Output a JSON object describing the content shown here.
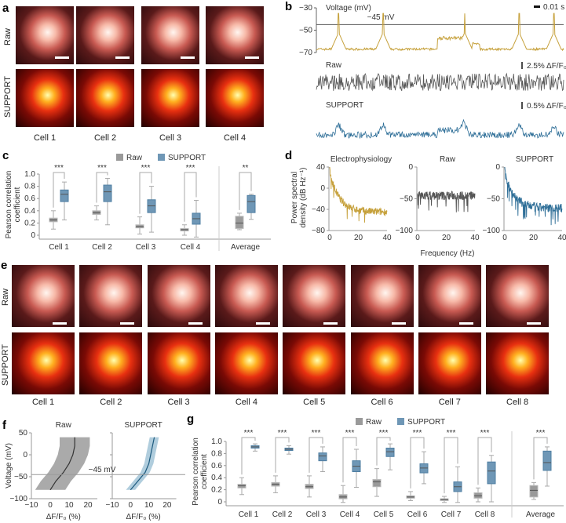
{
  "panels": {
    "a": "a",
    "b": "b",
    "c": "c",
    "d": "d",
    "e": "e",
    "f": "f",
    "g": "g"
  },
  "row_labels": {
    "raw": "Raw",
    "support": "SUPPORT"
  },
  "panel_a": {
    "cells": [
      "Cell 1",
      "Cell 2",
      "Cell 3",
      "Cell 4"
    ]
  },
  "panel_e": {
    "cells": [
      "Cell 1",
      "Cell 2",
      "Cell 3",
      "Cell 4",
      "Cell 5",
      "Cell 6",
      "Cell 7",
      "Cell 8"
    ]
  },
  "colors": {
    "ephys": "#c6a13c",
    "raw": "#555555",
    "support": "#2f6f98",
    "raw_box": "#9a9a9a",
    "support_box": "#6f97b6"
  },
  "chart_data": [
    {
      "id": "b",
      "type": "line",
      "voltage_label": "Voltage (mV)",
      "yticks": [
        -30,
        -50,
        -70
      ],
      "threshold_label": "−45 mV",
      "threshold": -45,
      "time_scale": "0.01 s",
      "raw_label": "Raw",
      "raw_scale": "2.5% ΔF/F₀",
      "support_label": "SUPPORT",
      "support_scale": "0.5% ΔF/F₀",
      "spike_times_frac": [
        0.09,
        0.27,
        0.6,
        0.82,
        0.96
      ],
      "baseline_mV": -67,
      "spike_peak_mV": -35
    },
    {
      "id": "c",
      "type": "box",
      "ylabel": "Pearson correlation coefficient",
      "ylim": [
        0,
        1
      ],
      "yticks": [
        "0",
        "0.2",
        "0.4",
        "0.6",
        "0.8",
        "1.0"
      ],
      "legend": [
        "Raw",
        "SUPPORT"
      ],
      "categories": [
        "Cell 1",
        "Cell 2",
        "Cell 3",
        "Cell 4",
        "Average"
      ],
      "significance": [
        "***",
        "***",
        "***",
        "***",
        "**"
      ],
      "raw": [
        [
          0.1,
          0.22,
          0.25,
          0.28,
          0.4
        ],
        [
          0.25,
          0.34,
          0.37,
          0.4,
          0.48
        ],
        [
          0.02,
          0.12,
          0.14,
          0.17,
          0.3
        ],
        [
          0.0,
          0.07,
          0.09,
          0.11,
          0.17
        ],
        [
          0.09,
          0.11,
          0.2,
          0.31,
          0.36
        ]
      ],
      "support": [
        [
          0.25,
          0.55,
          0.67,
          0.74,
          0.87
        ],
        [
          0.17,
          0.55,
          0.71,
          0.82,
          0.93
        ],
        [
          0.05,
          0.37,
          0.48,
          0.58,
          0.8
        ],
        [
          -0.03,
          0.18,
          0.27,
          0.36,
          0.57
        ],
        [
          0.26,
          0.37,
          0.55,
          0.65,
          0.67
        ]
      ]
    },
    {
      "id": "d",
      "type": "line",
      "ylabel": "Power spectral density (dB Hz⁻¹)",
      "xlabel": "Frequency (Hz)",
      "subplots": [
        {
          "title": "Electrophysiology",
          "ylim": [
            -80,
            40
          ],
          "yticks": [
            "40",
            "0",
            "−40",
            "−80"
          ],
          "start": 30,
          "end": -45
        },
        {
          "title": "Raw",
          "ylim": [
            -100,
            0
          ],
          "yticks": [
            "0",
            "−50",
            "−100"
          ],
          "start": -40,
          "end": -45
        },
        {
          "title": "SUPPORT",
          "ylim": [
            -100,
            0
          ],
          "yticks": [
            "0",
            "−50",
            "−100"
          ],
          "start": -10,
          "end": -65
        }
      ],
      "xticks": [
        "0",
        "20",
        "40"
      ],
      "xlim": [
        0,
        40
      ]
    },
    {
      "id": "f",
      "type": "line",
      "ylabel": "Voltage (mV)",
      "xlabel": "ΔF/F₀ (%)",
      "ylim": [
        -100,
        50
      ],
      "xlim": [
        -10,
        25
      ],
      "yticks": [
        "50",
        "0",
        "−50",
        "−100"
      ],
      "xticks": [
        "−10",
        "0",
        "10",
        "20"
      ],
      "threshold_label": "−45 mV",
      "voltage": [
        -80,
        -60,
        -40,
        -20,
        0,
        20,
        40
      ],
      "subplots": [
        {
          "title": "Raw",
          "mean": [
            0,
            3,
            7,
            10,
            12,
            13,
            13
          ],
          "sd": 8
        },
        {
          "title": "SUPPORT",
          "mean": [
            0,
            4,
            8,
            10,
            11,
            12,
            13
          ],
          "sd": 2.5
        }
      ]
    },
    {
      "id": "g",
      "type": "box",
      "ylabel": "Pearson correlation coefficient",
      "ylim": [
        0,
        1
      ],
      "yticks": [
        "0",
        "0.2",
        "0.4",
        "0.6",
        "0.8",
        "1.0"
      ],
      "legend": [
        "Raw",
        "SUPPORT"
      ],
      "categories": [
        "Cell 1",
        "Cell 2",
        "Cell 3",
        "Cell 4",
        "Cell 5",
        "Cell 6",
        "Cell 7",
        "Cell 8",
        "Average"
      ],
      "significance": [
        "***",
        "***",
        "***",
        "***",
        "***",
        "***",
        "***",
        "***",
        "***"
      ],
      "raw": [
        [
          0.12,
          0.23,
          0.27,
          0.29,
          0.4
        ],
        [
          0.15,
          0.26,
          0.29,
          0.32,
          0.43
        ],
        [
          0.08,
          0.22,
          0.25,
          0.29,
          0.43
        ],
        [
          -0.01,
          0.05,
          0.08,
          0.12,
          0.27
        ],
        [
          0.09,
          0.25,
          0.33,
          0.37,
          0.55
        ],
        [
          0.02,
          0.06,
          0.08,
          0.1,
          0.17
        ],
        [
          -0.01,
          0.02,
          0.04,
          0.05,
          0.09
        ],
        [
          0,
          0.06,
          0.1,
          0.15,
          0.23
        ],
        [
          0.04,
          0.08,
          0.19,
          0.27,
          0.32
        ]
      ],
      "support": [
        [
          0.84,
          0.89,
          0.91,
          0.93,
          0.96
        ],
        [
          0.79,
          0.85,
          0.87,
          0.89,
          0.93
        ],
        [
          0.5,
          0.68,
          0.76,
          0.81,
          0.91
        ],
        [
          0.24,
          0.5,
          0.59,
          0.68,
          0.87
        ],
        [
          0.53,
          0.75,
          0.83,
          0.89,
          0.96
        ],
        [
          0.3,
          0.48,
          0.56,
          0.63,
          0.83
        ],
        [
          -0.01,
          0.17,
          0.25,
          0.33,
          0.58
        ],
        [
          0,
          0.3,
          0.51,
          0.66,
          0.77
        ],
        [
          0.26,
          0.52,
          0.65,
          0.84,
          0.91
        ]
      ]
    }
  ]
}
